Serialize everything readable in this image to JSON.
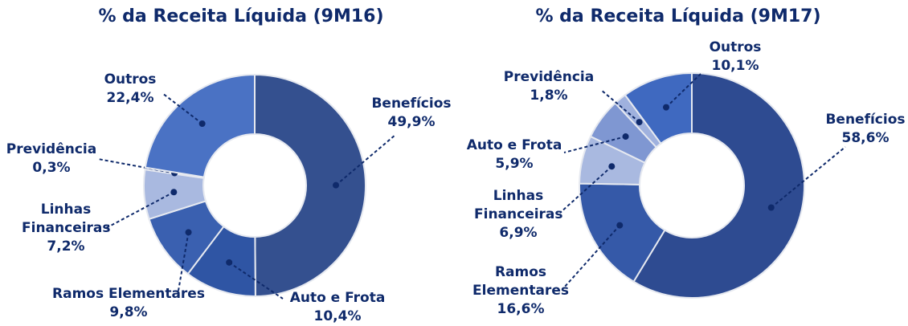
{
  "chart_data": [
    {
      "type": "donut",
      "title": "% da Receita Líquida (9M16)",
      "categories": [
        "Benefícios",
        "Auto e Frota",
        "Ramos Elementares",
        "Linhas Financeiras",
        "Previdência",
        "Outros"
      ],
      "values": [
        49.9,
        10.4,
        9.8,
        7.2,
        0.3,
        22.4
      ],
      "value_labels": [
        "49,9%",
        "10,4%",
        "9,8%",
        "7,2%",
        "0,3%",
        "22,4%"
      ],
      "colors": [
        "#34508f",
        "#2f55a4",
        "#3a60b0",
        "#a9b9e0",
        "#8fa3d6",
        "#4a72c4"
      ]
    },
    {
      "type": "donut",
      "title": "% da Receita Líquida (9M17)",
      "categories": [
        "Benefícios",
        "Ramos Elementares",
        "Linhas Financeiras",
        "Auto e Frota",
        "Previdência",
        "Outros"
      ],
      "values": [
        58.6,
        16.6,
        6.9,
        5.9,
        1.8,
        10.1
      ],
      "value_labels": [
        "58,6%",
        "16,6%",
        "6,9%",
        "5,9%",
        "1,8%",
        "10,1%"
      ],
      "colors": [
        "#2e4b91",
        "#3559a8",
        "#a9b9e0",
        "#7f97d2",
        "#9fb1de",
        "#3f69c0"
      ]
    }
  ]
}
